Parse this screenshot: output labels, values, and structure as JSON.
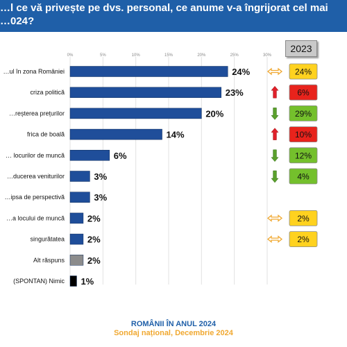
{
  "header": {
    "title": "…l ce vă privește pe dvs. personal, ce anume v-a îngrijorat cel mai\n…024?"
  },
  "comparison": {
    "year_label": "2023"
  },
  "footer": {
    "line1": "ROMÂNII ÎN ANUL 2024",
    "line2": "Sondaj național, Decembrie 2024"
  },
  "colors": {
    "bar_blue": "#1f4e9a",
    "bar_gray": "#8c8c8c",
    "bar_black": "#000000",
    "header_blue": "#1f5fa8",
    "arrow_up": "#e0202a",
    "arrow_down": "#5aa02c",
    "arrow_same": "#f0a830"
  },
  "chart_data": {
    "type": "bar",
    "orientation": "horizontal",
    "title": "",
    "xlabel": "",
    "ylabel": "",
    "xlim": [
      0,
      30
    ],
    "ticks": [
      "0%",
      "5%",
      "10%",
      "15%",
      "20%",
      "25%",
      "30%"
    ],
    "tick_values": [
      0,
      5,
      10,
      15,
      20,
      25,
      30
    ],
    "grid": true,
    "categories": [
      "…ul în zona României",
      "criza politică",
      "…reșterea prețurilor",
      "frica de boală",
      "… locurilor de muncă",
      "…ducerea veniturilor",
      "…ipsa de perspectivă",
      "…a locului de muncă",
      "singurătatea",
      "Alt răspuns",
      "(SPONTAN) Nimic"
    ],
    "values": [
      24,
      23,
      20,
      14,
      6,
      3,
      3,
      2,
      2,
      2,
      1
    ],
    "value_labels": [
      "24%",
      "23%",
      "20%",
      "14%",
      "6%",
      "3%",
      "3%",
      "2%",
      "2%",
      "2%",
      "1%"
    ],
    "bar_colors": [
      "blue",
      "blue",
      "blue",
      "blue",
      "blue",
      "blue",
      "blue",
      "blue",
      "blue",
      "gray",
      "black"
    ],
    "trend": [
      "same",
      "up",
      "down",
      "up",
      "down",
      "down",
      "",
      "same",
      "same",
      "",
      ""
    ],
    "previous_labels": [
      "24%",
      "6%",
      "29%",
      "10%",
      "12%",
      "4%",
      "",
      "2%",
      "2%",
      "",
      ""
    ],
    "previous_colors": [
      "yellow",
      "red",
      "green",
      "red",
      "green",
      "green",
      "",
      "yellow",
      "yellow",
      "",
      ""
    ]
  }
}
